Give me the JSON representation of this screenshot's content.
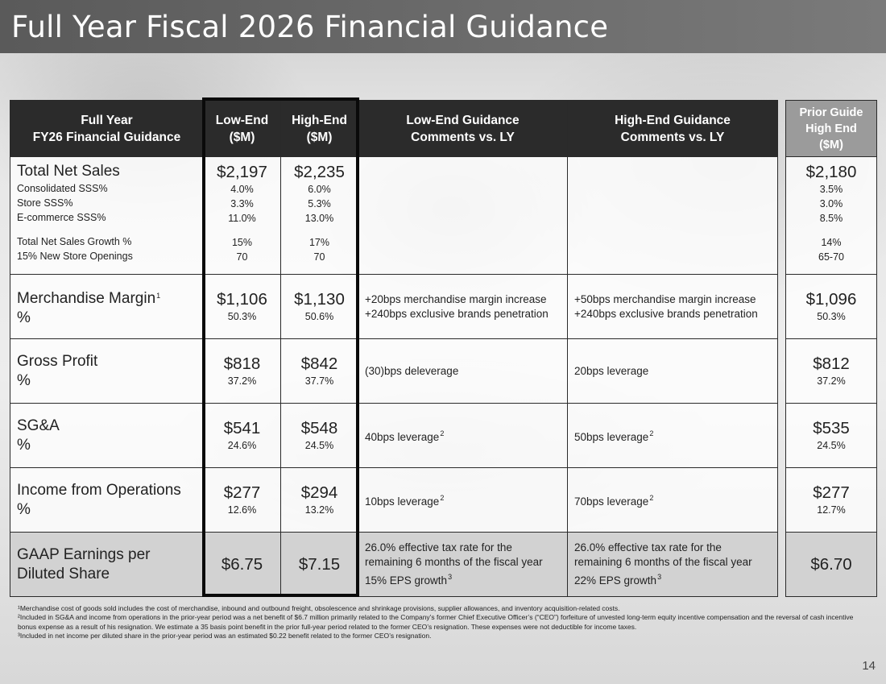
{
  "title": "Full Year Fiscal 2026 Financial Guidance",
  "page_number": "14",
  "headers": {
    "label": [
      "Full Year",
      "FY26 Financial Guidance"
    ],
    "low": [
      "Low-End",
      "($M)"
    ],
    "high": [
      "High-End",
      "($M)"
    ],
    "low_comment": [
      "Low-End Guidance",
      "Comments vs. LY"
    ],
    "high_comment": [
      "High-End Guidance",
      "Comments vs. LY"
    ],
    "prior": [
      "Prior Guide",
      "High End",
      "($M)"
    ]
  },
  "sales": {
    "label": "Total Net Sales",
    "low": "$2,197",
    "high": "$2,235",
    "prior": "$2,180",
    "subs": [
      {
        "label": "Consolidated SSS%",
        "low": "4.0%",
        "high": "6.0%",
        "prior": "3.5%"
      },
      {
        "label": "Store SSS%",
        "low": "3.3%",
        "high": "5.3%",
        "prior": "3.0%"
      },
      {
        "label": "E-commerce SSS%",
        "low": "11.0%",
        "high": "13.0%",
        "prior": "8.5%"
      },
      {
        "label": "Total Net Sales Growth %",
        "low": "15%",
        "high": "17%",
        "prior": "14%"
      },
      {
        "label": "15% New Store Openings",
        "low": "70",
        "high": "70",
        "prior": "65-70"
      }
    ]
  },
  "rows": [
    {
      "label1": "Merchandise Margin",
      "label_sup": "1",
      "label2": "%",
      "low": "$1,106",
      "low_pct": "50.3%",
      "high": "$1,130",
      "high_pct": "50.6%",
      "low_comment": [
        "+20bps merchandise margin increase",
        "+240bps exclusive brands penetration"
      ],
      "low_sup": "",
      "high_comment": [
        "+50bps merchandise margin increase",
        "+240bps exclusive brands penetration"
      ],
      "high_sup": "",
      "prior": "$1,096",
      "prior_pct": "50.3%"
    },
    {
      "label1": "Gross Profit",
      "label_sup": "",
      "label2": "%",
      "low": "$818",
      "low_pct": "37.2%",
      "high": "$842",
      "high_pct": "37.7%",
      "low_comment": [
        "(30)bps deleverage",
        ""
      ],
      "low_sup": "",
      "high_comment": [
        "20bps leverage",
        ""
      ],
      "high_sup": "",
      "prior": "$812",
      "prior_pct": "37.2%"
    },
    {
      "label1": "SG&A",
      "label_sup": "",
      "label2": "%",
      "low": "$541",
      "low_pct": "24.6%",
      "high": "$548",
      "high_pct": "24.5%",
      "low_comment": [
        "40bps leverage",
        ""
      ],
      "low_sup": "2",
      "high_comment": [
        "50bps leverage",
        ""
      ],
      "high_sup": "2",
      "prior": "$535",
      "prior_pct": "24.5%"
    },
    {
      "label1": "Income from Operations",
      "label_sup": "",
      "label2": "%",
      "low": "$277",
      "low_pct": "12.6%",
      "high": "$294",
      "high_pct": "13.2%",
      "low_comment": [
        "10bps leverage",
        ""
      ],
      "low_sup": "2",
      "high_comment": [
        "70bps leverage",
        ""
      ],
      "high_sup": "2",
      "prior": "$277",
      "prior_pct": "12.7%"
    }
  ],
  "eps": {
    "label1": "GAAP Earnings per",
    "label2": "Diluted Share",
    "low": "$6.75",
    "high": "$7.15",
    "low_comment": [
      "26.0% effective tax rate for the",
      "remaining 6 months of the fiscal year",
      "15% EPS growth"
    ],
    "low_sup": "3",
    "high_comment": [
      "26.0% effective tax rate for the",
      "remaining 6 months of the fiscal year",
      "22% EPS growth"
    ],
    "high_sup": "3",
    "prior": "$6.70"
  },
  "footnotes": [
    "¹Merchandise cost of goods sold includes the cost of merchandise, inbound and outbound freight, obsolescence and shrinkage provisions, supplier allowances, and inventory acquisition-related costs.",
    "²Included in SG&A and income from operations in the prior-year period was a net benefit of $6.7 million primarily related to the Company’s former Chief Executive Officer’s (“CEO”) forfeiture of unvested long-term equity incentive compensation and the reversal of cash incentive bonus expense as a result of his resignation. We estimate a 35 basis point benefit in the prior full-year period related to the former CEO’s resignation. These expenses were not deductible for income taxes.",
    "³Included in net income per diluted share in the prior-year period was an estimated $0.22 benefit related to the former CEO’s resignation."
  ]
}
